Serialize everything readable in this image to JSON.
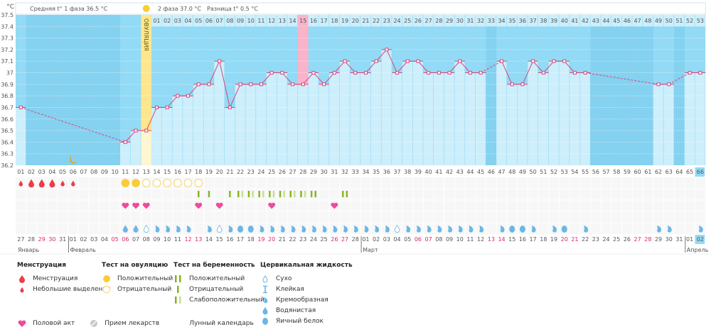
{
  "header": {
    "unit": "°C",
    "phase1": "Средняя t° 1 фаза 36.5 °C",
    "phase2": "2 фаза 37.0 °C",
    "difference": "Разница t° 0.5 °C",
    "ovulation_label": "ОВУЛЯЦИЯ"
  },
  "chart_data": {
    "type": "line",
    "ylabel": "°C",
    "ylim": [
      36.2,
      37.5
    ],
    "yticks": [
      "37.5",
      "37.4",
      "37.3",
      "37.2",
      "37.1",
      "37",
      "36.9",
      "36.8",
      "36.7",
      "36.6",
      "36.5",
      "36.4",
      "36.3",
      "36.2"
    ],
    "grid": true,
    "cycle_days": [
      "01",
      "02",
      "03",
      "04",
      "05",
      "06",
      "07",
      "08",
      "09",
      "10",
      "11",
      "12",
      "13",
      "14",
      "15",
      "16",
      "17",
      "18",
      "19",
      "20",
      "21",
      "22",
      "23",
      "24",
      "25",
      "26",
      "27",
      "28",
      "29",
      "30",
      "31",
      "32",
      "33",
      "34",
      "35",
      "36",
      "37",
      "38",
      "39",
      "40",
      "41",
      "42",
      "43",
      "44",
      "45",
      "46",
      "47",
      "48",
      "49",
      "50",
      "51",
      "52",
      "53",
      "54",
      "55",
      "56",
      "57",
      "58",
      "59",
      "60",
      "61",
      "62",
      "63",
      "64",
      "65",
      "66"
    ],
    "temperatures": [
      36.7,
      null,
      null,
      null,
      null,
      null,
      null,
      null,
      null,
      null,
      36.4,
      36.5,
      36.5,
      36.7,
      36.7,
      36.8,
      36.8,
      36.9,
      36.9,
      37.1,
      36.7,
      36.9,
      36.9,
      36.9,
      37.0,
      37.0,
      36.9,
      36.9,
      37.0,
      36.9,
      37.0,
      37.1,
      37.0,
      37.0,
      37.1,
      37.2,
      37.0,
      37.1,
      37.1,
      37.0,
      37.0,
      37.0,
      37.1,
      37.0,
      37.0,
      null,
      37.1,
      36.9,
      36.9,
      37.1,
      37.0,
      37.1,
      37.1,
      37.0,
      37.0,
      null,
      null,
      null,
      null,
      null,
      null,
      36.9,
      36.9,
      null,
      37.0,
      37.0
    ],
    "ovulation_day": 13,
    "post_ovulation_days": [
      "01",
      "02",
      "03",
      "04",
      "05",
      "06",
      "07",
      "08",
      "09",
      "10",
      "11",
      "12",
      "13",
      "14",
      "15",
      "16",
      "17",
      "18",
      "19",
      "20",
      "21",
      "22",
      "23",
      "24",
      "25",
      "26",
      "27",
      "28",
      "29",
      "30",
      "31",
      "32",
      "33",
      "34",
      "35",
      "36",
      "37",
      "38",
      "39",
      "40",
      "41",
      "42",
      "43",
      "44",
      "45",
      "46",
      "47",
      "48",
      "49",
      "50",
      "51",
      "52",
      "53"
    ],
    "highlighted_post_ovulation_day": "15",
    "current_day": "66",
    "moon_day": 6,
    "dates": [
      "27",
      "28",
      "29",
      "30",
      "31",
      "01",
      "02",
      "03",
      "04",
      "05",
      "06",
      "07",
      "08",
      "09",
      "10",
      "11",
      "12",
      "13",
      "14",
      "15",
      "16",
      "17",
      "18",
      "19",
      "20",
      "21",
      "22",
      "23",
      "24",
      "25",
      "26",
      "27",
      "28",
      "01",
      "02",
      "03",
      "04",
      "05",
      "06",
      "07",
      "08",
      "09",
      "10",
      "11",
      "12",
      "13",
      "14",
      "15",
      "16",
      "17",
      "18",
      "19",
      "20",
      "21",
      "22",
      "23",
      "24",
      "25",
      "26",
      "27",
      "28",
      "29",
      "30",
      "31",
      "01",
      "02"
    ],
    "weekend_days": [
      3,
      4,
      10,
      11,
      17,
      18,
      24,
      25,
      31,
      32,
      39,
      40,
      46,
      47,
      53,
      54,
      60,
      61
    ],
    "months": [
      {
        "name": "Январь",
        "start_day": 1
      },
      {
        "name": "Февраль",
        "start_day": 6
      },
      {
        "name": "Март",
        "start_day": 34
      },
      {
        "name": "Апрель",
        "start_day": 65
      }
    ],
    "menstruation": {
      "1": "light",
      "2": "heavy",
      "3": "heavy",
      "4": "heavy",
      "5": "light",
      "6": "light"
    },
    "ovulation_test": {
      "11": "positive",
      "12": "positive",
      "13": "negative",
      "14": "negative",
      "15": "negative",
      "16": "negative",
      "17": "negative",
      "18": "negative"
    },
    "pregnancy_test": {
      "18": "negative",
      "19": "negative",
      "21": "negative",
      "22": "weak",
      "23": "weak",
      "24": "weak",
      "25": "weak",
      "26": "weak",
      "27": "weak",
      "28": "weak",
      "29": "positive",
      "32": "positive"
    },
    "intercourse": [
      11,
      12,
      13,
      18,
      20,
      25,
      31
    ],
    "cervical_fluid": {
      "11": "watery",
      "12": "watery",
      "13": "dry",
      "14": "creamy",
      "15": "creamy",
      "16": "creamy",
      "17": "creamy",
      "19": "creamy",
      "20": "dry",
      "21": "creamy",
      "22": "eggwhite",
      "23": "eggwhite",
      "24": "creamy",
      "25": "creamy",
      "26": "creamy",
      "27": "creamy",
      "28": "creamy",
      "29": "creamy",
      "30": "creamy",
      "31": "creamy",
      "32": "creamy",
      "33": "creamy",
      "34": "creamy",
      "35": "creamy",
      "36": "creamy",
      "37": "dry",
      "38": "creamy",
      "39": "creamy",
      "40": "creamy",
      "41": "creamy",
      "42": "creamy",
      "43": "creamy",
      "44": "creamy",
      "45": "creamy",
      "47": "creamy",
      "48": "eggwhite",
      "49": "eggwhite",
      "50": "creamy",
      "52": "creamy",
      "53": "eggwhite",
      "55": "creamy",
      "62": "creamy",
      "63": "creamy",
      "66": "creamy"
    }
  },
  "colors": {
    "line": "#d9467c",
    "bg": "#92daf5",
    "empty": "#84d1f0",
    "fill": "#cdeefb",
    "ovulation": "#fde68c",
    "highlight": "#f8b4c8",
    "blood": "#ef3b4a",
    "ovtest": "#f9cd36",
    "preg": "#86b31c",
    "preg_weak": "#c7de93",
    "heart": "#ef4b9b",
    "fluid": "#6ab7e6",
    "weekend": "#e0246a"
  },
  "legend": {
    "menstruation": {
      "title": "Менструация",
      "items": [
        "Менструация",
        "Небольшие выделения"
      ]
    },
    "ovulation_test": {
      "title": "Тест на овуляцию",
      "items": [
        "Положительный",
        "Отрицательный"
      ]
    },
    "pregnancy_test": {
      "title": "Тест на беременность",
      "items": [
        "Положительный",
        "Отрицательный",
        "Слабоположительный"
      ]
    },
    "cervical": {
      "title": "Цервикальная жидкость",
      "items": [
        "Сухо",
        "Клейкая",
        "Кремообразная",
        "Водянистая",
        "Яичный белок"
      ]
    },
    "bottom": [
      "Половой акт",
      "Прием лекарств",
      "Лунный календарь"
    ]
  }
}
